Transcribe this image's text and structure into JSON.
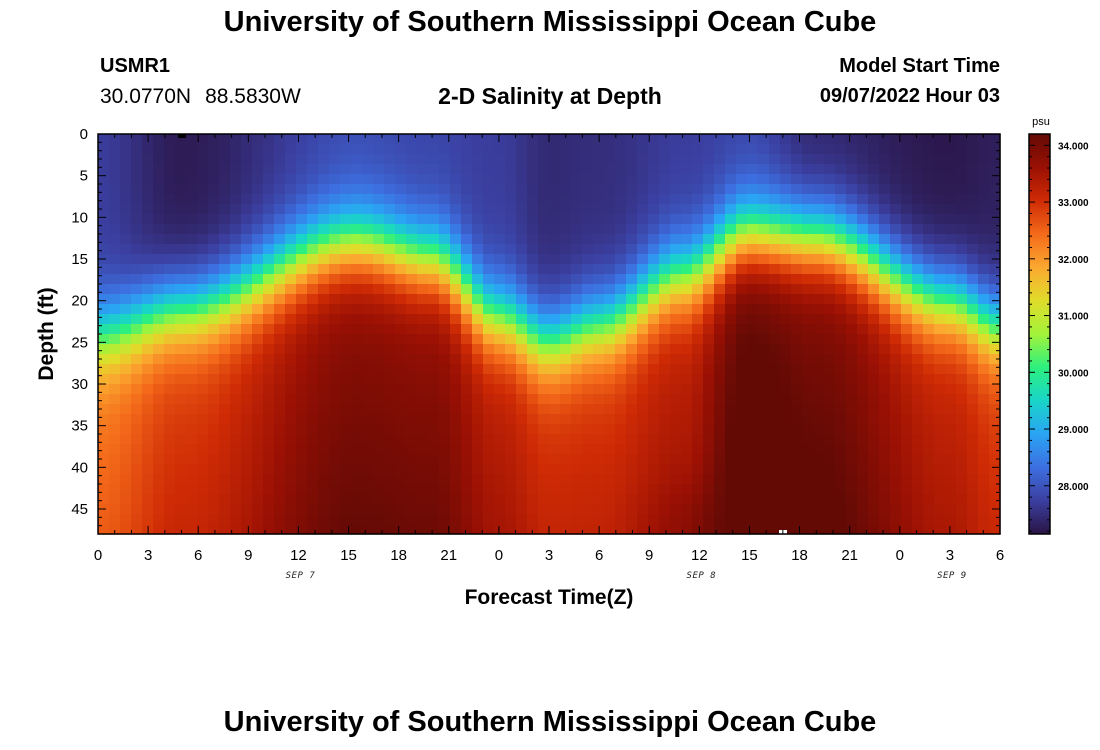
{
  "header": {
    "title": "University of Southern Mississippi Ocean Cube",
    "station": "USMR1",
    "lat": "30.0770N",
    "lon": "88.5830W",
    "plot_title": "2-D Salinity at Depth",
    "model_start_label": "Model Start Time",
    "model_start_value": "09/07/2022 Hour 03"
  },
  "footer": {
    "title": "University of Southern Mississippi Ocean Cube"
  },
  "chart_data": {
    "type": "heatmap",
    "title": "2-D Salinity at Depth",
    "xlabel": "Forecast Time(Z)",
    "ylabel": "Depth (ft)",
    "xlim": [
      0,
      54
    ],
    "ylim": [
      0,
      48
    ],
    "x_ticks": [
      0,
      3,
      6,
      9,
      12,
      15,
      18,
      21,
      24,
      27,
      30,
      33,
      36,
      39,
      42,
      45,
      48,
      51,
      54
    ],
    "x_tick_labels": [
      "0",
      "3",
      "6",
      "9",
      "12",
      "15",
      "18",
      "21",
      "0",
      "3",
      "6",
      "9",
      "12",
      "15",
      "18",
      "21",
      "0",
      "3",
      "6"
    ],
    "date_labels": [
      {
        "label": "SEP 7",
        "x": 12
      },
      {
        "label": "SEP 8",
        "x": 36
      },
      {
        "label": "SEP 9",
        "x": 51
      }
    ],
    "y_ticks": [
      0,
      5,
      10,
      15,
      20,
      25,
      30,
      35,
      40,
      45
    ],
    "y_tick_labels": [
      "0",
      "5",
      "10",
      "15",
      "20",
      "25",
      "30",
      "35",
      "40",
      "45"
    ],
    "colorbar": {
      "unit": "psu",
      "vmin": 27.15,
      "vmax": 34.2,
      "ticks": [
        28.0,
        29.0,
        30.0,
        31.0,
        32.0,
        33.0,
        34.0
      ],
      "tick_labels": [
        "28.000",
        "29.000",
        "30.000",
        "31.000",
        "32.000",
        "33.000",
        "34.000"
      ]
    },
    "colors": {
      "stops": [
        "#2a1445",
        "#3b3fa0",
        "#3d6fe0",
        "#2aa4f4",
        "#19d5c8",
        "#2df07e",
        "#a3f33a",
        "#e0dc2a",
        "#fba830",
        "#f46a1a",
        "#cf2b05",
        "#9a1004",
        "#640a05"
      ]
    },
    "field_model": {
      "description": "Salinity (psu) by forecast hour and depth (ft), estimated from the figure",
      "time_hours": [
        0,
        5,
        15.5,
        20,
        24,
        27,
        30,
        35,
        39,
        43,
        51,
        54
      ],
      "halocline_depth_ft": [
        24,
        21,
        13,
        15,
        22,
        25,
        23,
        17,
        12,
        12.5,
        20,
        23
      ],
      "surface_salinity_psu": [
        27.7,
        27.25,
        27.9,
        27.8,
        27.7,
        27.45,
        27.5,
        27.7,
        27.8,
        27.4,
        27.2,
        27.3
      ],
      "bottom_salinity_psu": [
        32.3,
        32.8,
        33.75,
        33.7,
        33.2,
        32.9,
        32.9,
        33.2,
        34.15,
        33.9,
        33.1,
        32.8
      ],
      "halocline_thickness_ft": 6,
      "bottom_max": {
        "time": 39,
        "depth": 47,
        "salinity_psu": 34.15
      }
    }
  }
}
